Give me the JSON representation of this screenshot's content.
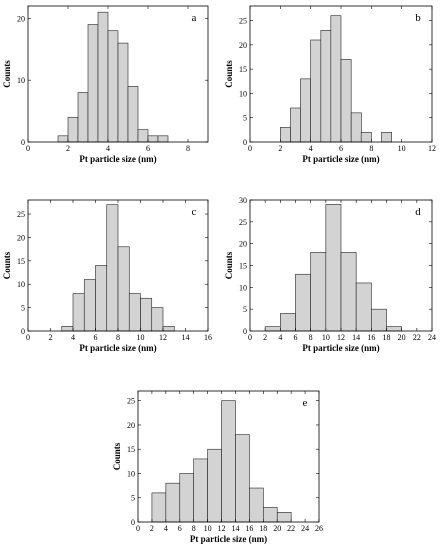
{
  "figure": {
    "background": "#ffffff",
    "bar_color": "#d3d3d3",
    "edge_color": "#222222"
  },
  "chart_data": [
    {
      "type": "bar",
      "panel": "a",
      "xlabel": "Pt particle size (nm)",
      "ylabel": "Counts",
      "xlim": [
        0,
        9
      ],
      "ylim": [
        0,
        22
      ],
      "xticks": [
        0,
        2,
        4,
        6,
        8
      ],
      "yticks": [
        0,
        10,
        20
      ],
      "bin_width": 0.5,
      "bin_starts": [
        1.5,
        2.0,
        2.5,
        3.0,
        3.5,
        4.0,
        4.5,
        5.0,
        5.5,
        6.0,
        6.5,
        7.0,
        7.5
      ],
      "values": [
        1,
        4,
        8,
        19,
        21,
        18,
        16,
        9,
        2,
        1,
        1,
        0,
        0
      ]
    },
    {
      "type": "bar",
      "panel": "b",
      "xlabel": "Pt particle size (nm)",
      "ylabel": "Counts",
      "xlim": [
        0,
        12
      ],
      "ylim": [
        0,
        28
      ],
      "xticks": [
        0,
        2,
        4,
        6,
        8,
        10,
        12
      ],
      "yticks": [
        0,
        5,
        10,
        15,
        20,
        25
      ],
      "bin_width": 0.67,
      "bin_starts": [
        2.0,
        2.67,
        3.33,
        4.0,
        4.67,
        5.33,
        6.0,
        6.67,
        7.33,
        8.0,
        8.67,
        9.33
      ],
      "values": [
        3,
        7,
        13,
        21,
        23,
        26,
        17,
        6,
        2,
        0,
        2,
        0
      ]
    },
    {
      "type": "bar",
      "panel": "c",
      "xlabel": "Pt particle size (nm)",
      "ylabel": "Counts",
      "xlim": [
        0,
        16
      ],
      "ylim": [
        0,
        28
      ],
      "xticks": [
        0,
        2,
        4,
        6,
        8,
        10,
        12,
        14,
        16
      ],
      "yticks": [
        0,
        5,
        10,
        15,
        20,
        25
      ],
      "bin_width": 1.0,
      "bin_starts": [
        3,
        4,
        5,
        6,
        7,
        8,
        9,
        10,
        11,
        12,
        13,
        14
      ],
      "values": [
        1,
        8,
        11,
        14,
        27,
        18,
        8,
        7,
        5,
        1,
        0,
        0
      ]
    },
    {
      "type": "bar",
      "panel": "d",
      "xlabel": "Pt particle size (nm)",
      "ylabel": "Counts",
      "xlim": [
        0,
        24
      ],
      "ylim": [
        0,
        30
      ],
      "xticks": [
        0,
        2,
        4,
        6,
        8,
        10,
        12,
        14,
        16,
        18,
        20,
        22,
        24
      ],
      "yticks": [
        0,
        5,
        10,
        15,
        20,
        25,
        30
      ],
      "bin_width": 2.0,
      "bin_starts": [
        2,
        4,
        6,
        8,
        10,
        12,
        14,
        16,
        18
      ],
      "values": [
        1,
        4,
        13,
        18,
        29,
        18,
        11,
        5,
        1
      ]
    },
    {
      "type": "bar",
      "panel": "e",
      "xlabel": "Pt particle size (nm)",
      "ylabel": "Counts",
      "xlim": [
        0,
        26
      ],
      "ylim": [
        0,
        27
      ],
      "xticks": [
        0,
        2,
        4,
        6,
        8,
        10,
        12,
        14,
        16,
        18,
        20,
        22,
        24,
        26
      ],
      "yticks": [
        0,
        5,
        10,
        15,
        20,
        25
      ],
      "bin_width": 2.0,
      "bin_starts": [
        2,
        4,
        6,
        8,
        10,
        12,
        14,
        16,
        18,
        20,
        22
      ],
      "values": [
        6,
        8,
        10,
        13,
        15,
        25,
        18,
        7,
        3,
        2,
        0
      ]
    }
  ]
}
